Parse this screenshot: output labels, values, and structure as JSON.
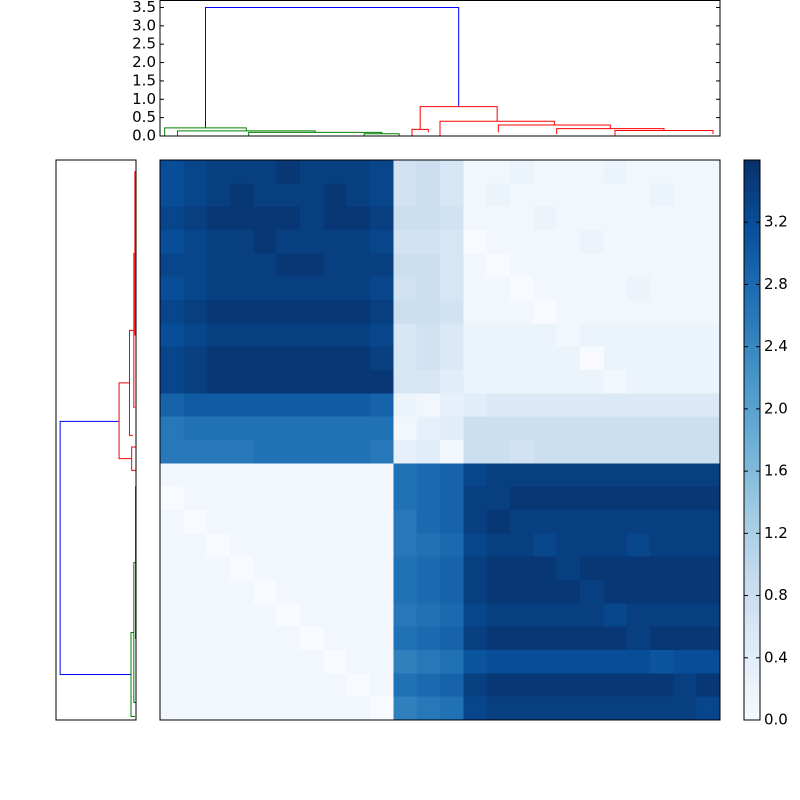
{
  "chart_data": [
    {
      "type": "dendrogram",
      "orientation": "top",
      "xlim": [
        0,
        48
      ],
      "ylim": [
        0,
        3.69
      ],
      "yticks": [
        {
          "value": 0,
          "label": "0.0"
        },
        {
          "value": 0.5,
          "label": "0.5"
        },
        {
          "value": 1,
          "label": "1.0"
        },
        {
          "value": 1.5,
          "label": "1.5"
        },
        {
          "value": 2,
          "label": "2.0"
        },
        {
          "value": 2.5,
          "label": "2.5"
        },
        {
          "value": 3,
          "label": "3.0"
        },
        {
          "value": 3.5,
          "label": "3.5"
        }
      ],
      "links": [
        {
          "color": "#0000ff",
          "leaf": [
            3.9,
            3.9,
            25.6,
            25.6
          ],
          "height": [
            0.22,
            3.5,
            3.5,
            0.8
          ]
        },
        {
          "color": "#008000",
          "leaf": [
            0.4,
            0.4,
            7.4,
            7.4
          ],
          "height": [
            0,
            0.22,
            0.22,
            0.14
          ]
        },
        {
          "color": "#008000",
          "leaf": [
            1.5,
            1.5,
            13.3,
            13.3
          ],
          "height": [
            0,
            0.14,
            0.14,
            0.1
          ]
        },
        {
          "color": "#008000",
          "leaf": [
            7.6,
            7.6,
            19,
            19
          ],
          "height": [
            0,
            0.1,
            0.1,
            0.06
          ]
        },
        {
          "color": "#008000",
          "leaf": [
            17.5,
            17.5,
            20.5,
            20.5
          ],
          "height": [
            0,
            0.06,
            0.06,
            0
          ]
        },
        {
          "color": "#ff0000",
          "leaf": [
            22.3,
            22.3,
            28.9,
            28.9
          ],
          "height": [
            0.18,
            0.8,
            0.8,
            0.4
          ]
        },
        {
          "color": "#ff0000",
          "leaf": [
            21.6,
            21.6,
            23,
            23
          ],
          "height": [
            0,
            0.18,
            0.18,
            0.1
          ]
        },
        {
          "color": "#ff0000",
          "leaf": [
            24,
            24,
            33.8,
            33.8
          ],
          "height": [
            0,
            0.4,
            0.4,
            0.3
          ]
        },
        {
          "color": "#ff0000",
          "leaf": [
            29,
            29,
            38.6,
            38.6
          ],
          "height": [
            0.1,
            0.3,
            0.3,
            0.2
          ]
        },
        {
          "color": "#ff0000",
          "leaf": [
            34,
            34,
            43.2,
            43.2
          ],
          "height": [
            0.05,
            0.2,
            0.2,
            0.15
          ]
        },
        {
          "color": "#ff0000",
          "leaf": [
            39,
            39,
            47.4,
            47.4
          ],
          "height": [
            0,
            0.15,
            0.15,
            0.05
          ]
        }
      ]
    },
    {
      "type": "dendrogram",
      "orientation": "left",
      "xlim": [
        3.69,
        0
      ],
      "ylim": [
        48,
        0
      ],
      "links": [
        {
          "color": "#0000ff",
          "leaf": [
            22.4,
            22.4,
            44.1,
            44.1
          ],
          "height": [
            0.78,
            3.5,
            3.5,
            0.23
          ]
        },
        {
          "color": "#ff0000",
          "leaf": [
            19.1,
            19.1,
            25.6,
            25.6
          ],
          "height": [
            0.3,
            0.78,
            0.78,
            0.2
          ]
        },
        {
          "color": "#ff0000",
          "leaf": [
            14.6,
            14.6,
            23.6,
            23.6
          ],
          "height": [
            0.1,
            0.3,
            0.3,
            0.15
          ]
        },
        {
          "color": "#ff0000",
          "leaf": [
            8,
            8,
            21.2,
            21.2
          ],
          "height": [
            0.05,
            0.1,
            0.1,
            0.05
          ]
        },
        {
          "color": "#ff0000",
          "leaf": [
            1,
            1,
            15,
            15
          ],
          "height": [
            0,
            0.05,
            0.05,
            0
          ]
        },
        {
          "color": "#ff0000",
          "leaf": [
            24.6,
            24.6,
            26.6,
            26.6
          ],
          "height": [
            0,
            0.2,
            0.2,
            0
          ]
        },
        {
          "color": "#008000",
          "leaf": [
            40.5,
            40.5,
            47.7,
            47.7
          ],
          "height": [
            0.1,
            0.23,
            0.23,
            0.05
          ]
        },
        {
          "color": "#008000",
          "leaf": [
            34.5,
            34.5,
            46.5,
            46.5
          ],
          "height": [
            0.02,
            0.1,
            0.1,
            0
          ]
        },
        {
          "color": "#008000",
          "leaf": [
            28,
            28,
            41,
            41
          ],
          "height": [
            0,
            0.02,
            0.02,
            0
          ]
        }
      ]
    },
    {
      "type": "heatmap",
      "zlim": [
        0,
        3.6
      ],
      "colormap": [
        "#f7fbff",
        "#deebf7",
        "#c6dbef",
        "#9ecae1",
        "#6baed6",
        "#4292c6",
        "#2171b5",
        "#08519c",
        "#08306b"
      ],
      "zticks": [
        {
          "value": 0,
          "label": "0.0"
        },
        {
          "value": 0.4,
          "label": "0.4"
        },
        {
          "value": 0.8,
          "label": "0.8"
        },
        {
          "value": 1.2,
          "label": "1.2"
        },
        {
          "value": 1.6,
          "label": "1.6"
        },
        {
          "value": 2,
          "label": "2.0"
        },
        {
          "value": 2.4,
          "label": "2.4"
        },
        {
          "value": 2.8,
          "label": "2.8"
        },
        {
          "value": 3.2,
          "label": "3.2"
        }
      ],
      "matrix": [
        [
          3.2,
          3.3,
          3.4,
          3.4,
          3.4,
          3.5,
          3.4,
          3.4,
          3.4,
          3.3,
          0.7,
          0.8,
          0.6,
          0.1,
          0.1,
          0.2,
          0.1,
          0.1,
          0.1,
          0.2,
          0.1,
          0.1,
          0.1,
          0.1
        ],
        [
          3.2,
          3.3,
          3.4,
          3.5,
          3.4,
          3.4,
          3.4,
          3.5,
          3.4,
          3.3,
          0.7,
          0.8,
          0.6,
          0.1,
          0.2,
          0.1,
          0.1,
          0.1,
          0.1,
          0.1,
          0.1,
          0.2,
          0.1,
          0.1
        ],
        [
          3.3,
          3.4,
          3.5,
          3.5,
          3.5,
          3.5,
          3.4,
          3.5,
          3.5,
          3.4,
          0.8,
          0.8,
          0.7,
          0.1,
          0.1,
          0.1,
          0.2,
          0.1,
          0.1,
          0.1,
          0.1,
          0.1,
          0.1,
          0.1
        ],
        [
          3.2,
          3.3,
          3.4,
          3.4,
          3.5,
          3.4,
          3.4,
          3.4,
          3.4,
          3.3,
          0.7,
          0.7,
          0.6,
          0.0,
          0.1,
          0.1,
          0.1,
          0.1,
          0.2,
          0.1,
          0.1,
          0.1,
          0.1,
          0.1
        ],
        [
          3.3,
          3.3,
          3.4,
          3.4,
          3.4,
          3.5,
          3.5,
          3.4,
          3.4,
          3.4,
          0.8,
          0.8,
          0.6,
          0.1,
          0.0,
          0.1,
          0.1,
          0.1,
          0.1,
          0.1,
          0.1,
          0.1,
          0.1,
          0.1
        ],
        [
          3.2,
          3.3,
          3.4,
          3.4,
          3.4,
          3.4,
          3.4,
          3.4,
          3.4,
          3.3,
          0.7,
          0.8,
          0.6,
          0.1,
          0.1,
          0.0,
          0.1,
          0.1,
          0.1,
          0.1,
          0.2,
          0.1,
          0.1,
          0.1
        ],
        [
          3.3,
          3.4,
          3.5,
          3.5,
          3.5,
          3.5,
          3.5,
          3.5,
          3.5,
          3.4,
          0.8,
          0.8,
          0.7,
          0.1,
          0.1,
          0.1,
          0.0,
          0.1,
          0.1,
          0.1,
          0.1,
          0.1,
          0.1,
          0.1
        ],
        [
          3.2,
          3.3,
          3.4,
          3.4,
          3.4,
          3.4,
          3.4,
          3.4,
          3.4,
          3.3,
          0.6,
          0.7,
          0.5,
          0.2,
          0.2,
          0.2,
          0.2,
          0.1,
          0.2,
          0.2,
          0.2,
          0.2,
          0.2,
          0.2
        ],
        [
          3.3,
          3.4,
          3.5,
          3.5,
          3.5,
          3.5,
          3.5,
          3.5,
          3.5,
          3.4,
          0.6,
          0.7,
          0.5,
          0.2,
          0.2,
          0.2,
          0.2,
          0.2,
          0.0,
          0.2,
          0.2,
          0.2,
          0.2,
          0.2
        ],
        [
          3.3,
          3.4,
          3.5,
          3.5,
          3.5,
          3.5,
          3.5,
          3.5,
          3.5,
          3.5,
          0.6,
          0.6,
          0.4,
          0.2,
          0.2,
          0.2,
          0.2,
          0.2,
          0.2,
          0.1,
          0.2,
          0.2,
          0.2,
          0.2
        ],
        [
          2.9,
          3.0,
          3.0,
          3.0,
          3.0,
          3.0,
          3.0,
          3.0,
          3.0,
          2.9,
          0.2,
          0.1,
          0.3,
          0.4,
          0.5,
          0.5,
          0.5,
          0.5,
          0.5,
          0.5,
          0.5,
          0.5,
          0.5,
          0.5
        ],
        [
          2.6,
          2.7,
          2.7,
          2.7,
          2.7,
          2.7,
          2.7,
          2.7,
          2.7,
          2.7,
          0.1,
          0.3,
          0.4,
          0.8,
          0.8,
          0.8,
          0.8,
          0.8,
          0.8,
          0.8,
          0.8,
          0.8,
          0.8,
          0.8
        ],
        [
          2.6,
          2.6,
          2.6,
          2.6,
          2.7,
          2.7,
          2.7,
          2.7,
          2.7,
          2.6,
          0.3,
          0.4,
          0.1,
          0.8,
          0.8,
          0.7,
          0.8,
          0.8,
          0.8,
          0.8,
          0.8,
          0.8,
          0.8,
          0.8
        ],
        [
          0.1,
          0.1,
          0.1,
          0.1,
          0.1,
          0.1,
          0.1,
          0.1,
          0.1,
          0.1,
          2.7,
          2.8,
          2.9,
          3.3,
          3.4,
          3.4,
          3.4,
          3.4,
          3.4,
          3.4,
          3.4,
          3.4,
          3.4,
          3.4
        ],
        [
          0.0,
          0.1,
          0.1,
          0.1,
          0.1,
          0.1,
          0.1,
          0.1,
          0.1,
          0.1,
          2.7,
          2.8,
          2.9,
          3.4,
          3.4,
          3.5,
          3.5,
          3.5,
          3.5,
          3.5,
          3.5,
          3.5,
          3.5,
          3.5
        ],
        [
          0.1,
          0.0,
          0.1,
          0.1,
          0.1,
          0.1,
          0.1,
          0.1,
          0.1,
          0.1,
          2.6,
          2.8,
          2.9,
          3.4,
          3.5,
          3.4,
          3.4,
          3.4,
          3.4,
          3.4,
          3.4,
          3.4,
          3.4,
          3.4
        ],
        [
          0.1,
          0.1,
          0.0,
          0.1,
          0.1,
          0.1,
          0.1,
          0.1,
          0.1,
          0.1,
          2.6,
          2.7,
          2.8,
          3.3,
          3.4,
          3.4,
          3.3,
          3.4,
          3.4,
          3.4,
          3.3,
          3.4,
          3.4,
          3.4
        ],
        [
          0.1,
          0.1,
          0.1,
          0.0,
          0.1,
          0.1,
          0.1,
          0.1,
          0.1,
          0.1,
          2.7,
          2.8,
          2.9,
          3.4,
          3.5,
          3.5,
          3.5,
          3.4,
          3.5,
          3.5,
          3.5,
          3.5,
          3.5,
          3.5
        ],
        [
          0.1,
          0.1,
          0.1,
          0.1,
          0.0,
          0.1,
          0.1,
          0.1,
          0.1,
          0.1,
          2.7,
          2.8,
          2.9,
          3.4,
          3.5,
          3.5,
          3.5,
          3.5,
          3.4,
          3.5,
          3.5,
          3.5,
          3.5,
          3.5
        ],
        [
          0.1,
          0.1,
          0.1,
          0.1,
          0.1,
          0.0,
          0.1,
          0.1,
          0.1,
          0.1,
          2.6,
          2.7,
          2.8,
          3.3,
          3.4,
          3.4,
          3.4,
          3.4,
          3.4,
          3.3,
          3.4,
          3.4,
          3.4,
          3.4
        ],
        [
          0.1,
          0.1,
          0.1,
          0.1,
          0.1,
          0.1,
          0.0,
          0.1,
          0.1,
          0.1,
          2.7,
          2.8,
          2.9,
          3.4,
          3.5,
          3.5,
          3.5,
          3.5,
          3.5,
          3.5,
          3.4,
          3.5,
          3.5,
          3.5
        ],
        [
          0.1,
          0.1,
          0.1,
          0.1,
          0.1,
          0.1,
          0.1,
          0.0,
          0.1,
          0.1,
          2.5,
          2.6,
          2.7,
          3.1,
          3.2,
          3.2,
          3.2,
          3.2,
          3.2,
          3.2,
          3.2,
          3.1,
          3.2,
          3.2
        ],
        [
          0.1,
          0.1,
          0.1,
          0.1,
          0.1,
          0.1,
          0.1,
          0.1,
          0.0,
          0.1,
          2.7,
          2.8,
          2.9,
          3.4,
          3.5,
          3.5,
          3.5,
          3.5,
          3.5,
          3.5,
          3.5,
          3.5,
          3.4,
          3.5
        ],
        [
          0.1,
          0.1,
          0.1,
          0.1,
          0.1,
          0.1,
          0.1,
          0.1,
          0.1,
          0.0,
          2.5,
          2.6,
          2.7,
          3.3,
          3.4,
          3.4,
          3.4,
          3.4,
          3.4,
          3.4,
          3.4,
          3.4,
          3.4,
          3.3
        ]
      ]
    }
  ]
}
